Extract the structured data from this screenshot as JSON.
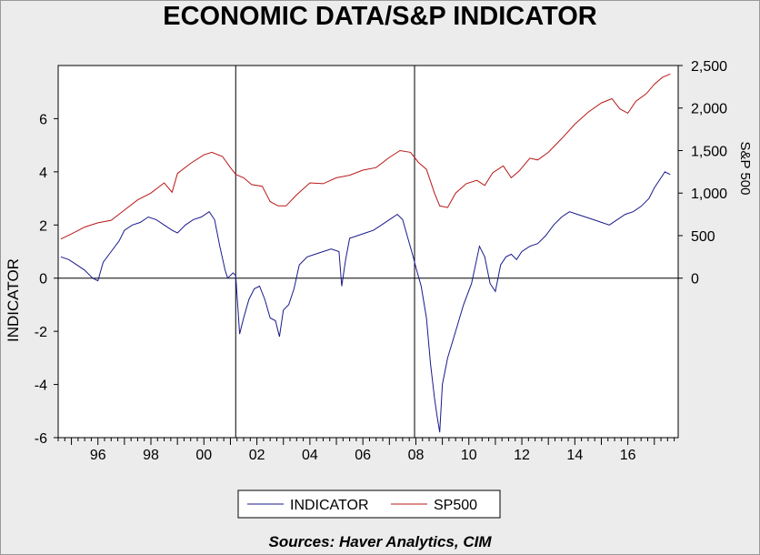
{
  "chart_data": {
    "type": "line",
    "title": "ECONOMIC DATA/S&P INDICATOR",
    "source": "Sources:  Haver Analytics, CIM",
    "left_axis": {
      "label": "INDICATOR",
      "ylim": [
        -6,
        8
      ],
      "ticks": [
        "-6",
        "-4",
        "-2",
        "0",
        "2",
        "4",
        "6"
      ]
    },
    "right_axis": {
      "label": "S&P 500",
      "ylim": [
        0,
        2500
      ],
      "ticks": [
        "0",
        "500",
        "1,000",
        "1,500",
        "2,000",
        "2,500"
      ]
    },
    "x_axis": {
      "range": [
        1994.5,
        2017.9
      ],
      "ticks": [
        "96",
        "98",
        "00",
        "02",
        "04",
        "06",
        "08",
        "10",
        "12",
        "14",
        "16"
      ]
    },
    "vertical_markers": [
      2001.2,
      2007.95
    ],
    "legend_position": "bottom-center",
    "series": [
      {
        "name": "INDICATOR",
        "axis": "left",
        "color": "#1a1a8c",
        "x": [
          1994.6,
          1994.9,
          1995.2,
          1995.5,
          1995.8,
          1996.0,
          1996.2,
          1996.5,
          1996.8,
          1997.0,
          1997.3,
          1997.6,
          1997.9,
          1998.2,
          1998.5,
          1998.8,
          1999.0,
          1999.3,
          1999.6,
          1999.9,
          2000.2,
          2000.4,
          2000.6,
          2000.8,
          2000.9,
          2001.0,
          2001.1,
          2001.2,
          2001.35,
          2001.5,
          2001.7,
          2001.9,
          2002.1,
          2002.3,
          2002.5,
          2002.7,
          2002.85,
          2003.0,
          2003.2,
          2003.4,
          2003.6,
          2003.9,
          2004.2,
          2004.5,
          2004.8,
          2005.1,
          2005.2,
          2005.35,
          2005.5,
          2005.8,
          2006.1,
          2006.4,
          2006.7,
          2007.0,
          2007.3,
          2007.5,
          2007.7,
          2007.9,
          2008.0,
          2008.2,
          2008.4,
          2008.55,
          2008.7,
          2008.8,
          2008.9,
          2009.0,
          2009.2,
          2009.5,
          2009.8,
          2010.1,
          2010.4,
          2010.6,
          2010.8,
          2011.0,
          2011.2,
          2011.4,
          2011.6,
          2011.8,
          2012.0,
          2012.3,
          2012.6,
          2012.9,
          2013.2,
          2013.5,
          2013.8,
          2014.1,
          2014.4,
          2014.7,
          2015.0,
          2015.3,
          2015.6,
          2015.9,
          2016.2,
          2016.5,
          2016.8,
          2017.0,
          2017.2,
          2017.4,
          2017.6
        ],
        "values": [
          0.8,
          0.7,
          0.5,
          0.3,
          0.0,
          -0.1,
          0.6,
          1.0,
          1.4,
          1.8,
          2.0,
          2.1,
          2.3,
          2.2,
          2.0,
          1.8,
          1.7,
          2.0,
          2.2,
          2.3,
          2.5,
          2.2,
          1.2,
          0.3,
          0.0,
          0.1,
          0.2,
          0.1,
          -2.1,
          -1.5,
          -0.8,
          -0.4,
          -0.3,
          -0.8,
          -1.5,
          -1.6,
          -2.2,
          -1.2,
          -1.0,
          -0.4,
          0.5,
          0.8,
          0.9,
          1.0,
          1.1,
          1.0,
          -0.3,
          0.7,
          1.5,
          1.6,
          1.7,
          1.8,
          2.0,
          2.2,
          2.4,
          2.2,
          1.5,
          0.8,
          0.4,
          -0.3,
          -1.5,
          -3.2,
          -4.5,
          -5.2,
          -5.8,
          -4.0,
          -3.0,
          -2.0,
          -1.0,
          -0.2,
          1.2,
          0.8,
          -0.2,
          -0.5,
          0.5,
          0.8,
          0.9,
          0.7,
          1.0,
          1.2,
          1.3,
          1.6,
          2.0,
          2.3,
          2.5,
          2.4,
          2.3,
          2.2,
          2.1,
          2.0,
          2.2,
          2.4,
          2.5,
          2.7,
          3.0,
          3.4,
          3.7,
          4.0,
          3.9
        ]
      },
      {
        "name": "SP500",
        "axis": "right",
        "color": "#b81818",
        "x": [
          1994.6,
          1995.0,
          1995.5,
          1996.0,
          1996.5,
          1997.0,
          1997.5,
          1998.0,
          1998.5,
          1998.8,
          1999.0,
          1999.5,
          2000.0,
          2000.3,
          2000.7,
          2001.0,
          2001.2,
          2001.5,
          2001.8,
          2002.2,
          2002.5,
          2002.8,
          2003.1,
          2003.5,
          2004.0,
          2004.5,
          2005.0,
          2005.5,
          2006.0,
          2006.5,
          2007.0,
          2007.4,
          2007.8,
          2008.1,
          2008.4,
          2008.7,
          2008.9,
          2009.2,
          2009.5,
          2009.9,
          2010.3,
          2010.6,
          2010.9,
          2011.3,
          2011.6,
          2011.9,
          2012.3,
          2012.6,
          2013.0,
          2013.5,
          2014.0,
          2014.5,
          2015.0,
          2015.4,
          2015.7,
          2016.0,
          2016.3,
          2016.7,
          2017.0,
          2017.3,
          2017.6
        ],
        "values": [
          460,
          520,
          600,
          650,
          680,
          800,
          920,
          1000,
          1120,
          1010,
          1230,
          1350,
          1450,
          1480,
          1430,
          1300,
          1220,
          1180,
          1100,
          1080,
          900,
          850,
          850,
          980,
          1120,
          1110,
          1180,
          1210,
          1270,
          1300,
          1420,
          1500,
          1480,
          1360,
          1280,
          1000,
          850,
          830,
          1000,
          1110,
          1150,
          1090,
          1240,
          1320,
          1180,
          1260,
          1410,
          1390,
          1480,
          1640,
          1810,
          1950,
          2060,
          2110,
          1990,
          1940,
          2080,
          2170,
          2280,
          2360,
          2400
        ]
      }
    ]
  }
}
